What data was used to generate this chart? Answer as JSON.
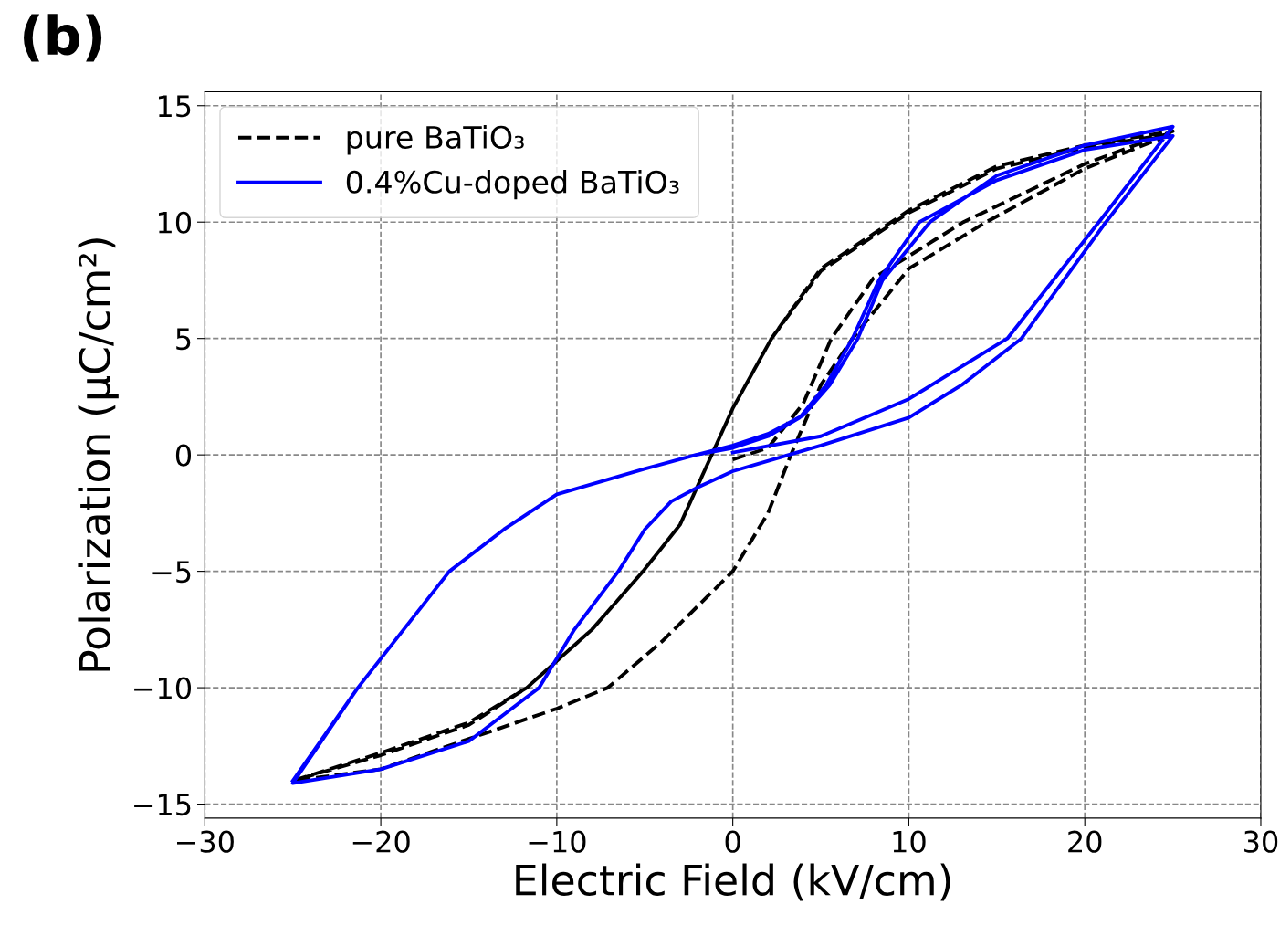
{
  "chart_data": {
    "type": "line",
    "xlabel": "Electric Field (kV/cm)",
    "ylabel": "Polarization (μC/cm²)",
    "annotations": [
      "(b)"
    ],
    "xlim": [
      -30,
      30
    ],
    "xticks": [
      {
        "value": -30,
        "label": "−30"
      },
      {
        "value": -20,
        "label": "−20"
      },
      {
        "value": -10,
        "label": "−10"
      },
      0,
      10,
      20,
      30
    ],
    "ylim": [
      -15.6,
      15.6
    ],
    "yticks": [
      {
        "value": -15,
        "label": "−15"
      },
      {
        "value": -10,
        "label": "−10"
      },
      {
        "value": -5,
        "label": "−5"
      },
      0,
      5,
      10,
      15
    ],
    "grid": true,
    "legend": "top left",
    "marker": "none",
    "series": [
      {
        "name": "pure BaTiO₃",
        "color": "#000000",
        "line_style": "dashed",
        "x": [
          0,
          2,
          4,
          5.6,
          8,
          13.1,
          20,
          25,
          20,
          15,
          10,
          5,
          2.2,
          0,
          -1.2,
          -3,
          -5.1,
          -8,
          -11.7,
          -15,
          -20,
          -25,
          -20,
          -15,
          -10,
          -7.1,
          -4,
          -2,
          0,
          2,
          3.3,
          5,
          6.8,
          10,
          14.4,
          20,
          25,
          20,
          15,
          10,
          5,
          2.2,
          0,
          -1.2,
          -3,
          -5.1,
          -8,
          -11.7,
          -15,
          -20,
          -25
        ],
        "values": [
          -0.2,
          0.3,
          2.2,
          5,
          7.6,
          10,
          12.5,
          13.9,
          13.3,
          12.4,
          10.5,
          8,
          5,
          2,
          0,
          -3,
          -5,
          -7.5,
          -10,
          -11.5,
          -12.8,
          -14,
          -13.5,
          -12.2,
          -10.9,
          -10,
          -8,
          -6.5,
          -5,
          -2.5,
          0,
          3,
          5,
          8,
          10,
          12.3,
          13.8,
          13.2,
          12.3,
          10.4,
          7.9,
          5,
          2,
          0,
          -3,
          -5,
          -7.5,
          -10,
          -11.6,
          -12.9,
          -14
        ]
      },
      {
        "name": "0.4%Cu-doped BaTiO₃",
        "color": "#0000ff",
        "line_style": "solid",
        "x": [
          0,
          5,
          10,
          15.6,
          20.8,
          25,
          20,
          15,
          11.2,
          8.5,
          7.1,
          5.5,
          4,
          2,
          0,
          -2.1,
          -5,
          -10,
          -13,
          -16.1,
          -21.3,
          -25,
          -20,
          -15,
          -11,
          -9,
          -6.5,
          -5,
          -3.5,
          -2,
          0,
          5,
          10,
          13,
          16.4,
          21.2,
          25,
          20,
          15,
          10.6,
          8.3,
          6.8,
          5.3,
          3.8,
          2,
          0,
          -2.1,
          -5,
          -10,
          -13,
          -16.1,
          -21.3,
          -25
        ],
        "values": [
          0.1,
          0.8,
          2.4,
          5,
          10,
          14.1,
          13.3,
          12,
          10,
          7.5,
          5,
          3,
          1.7,
          0.9,
          0.4,
          0,
          -0.6,
          -1.7,
          -3.2,
          -5,
          -10,
          -14.1,
          -13.5,
          -12.3,
          -10,
          -7.5,
          -5,
          -3.2,
          -2,
          -1.4,
          -0.7,
          0.4,
          1.6,
          3,
          5,
          10,
          13.7,
          13.1,
          11.8,
          10,
          7.5,
          5,
          3,
          1.6,
          0.8,
          0.3,
          0,
          -0.6,
          -1.7,
          -3.2,
          -5,
          -10,
          -14
        ]
      }
    ]
  }
}
